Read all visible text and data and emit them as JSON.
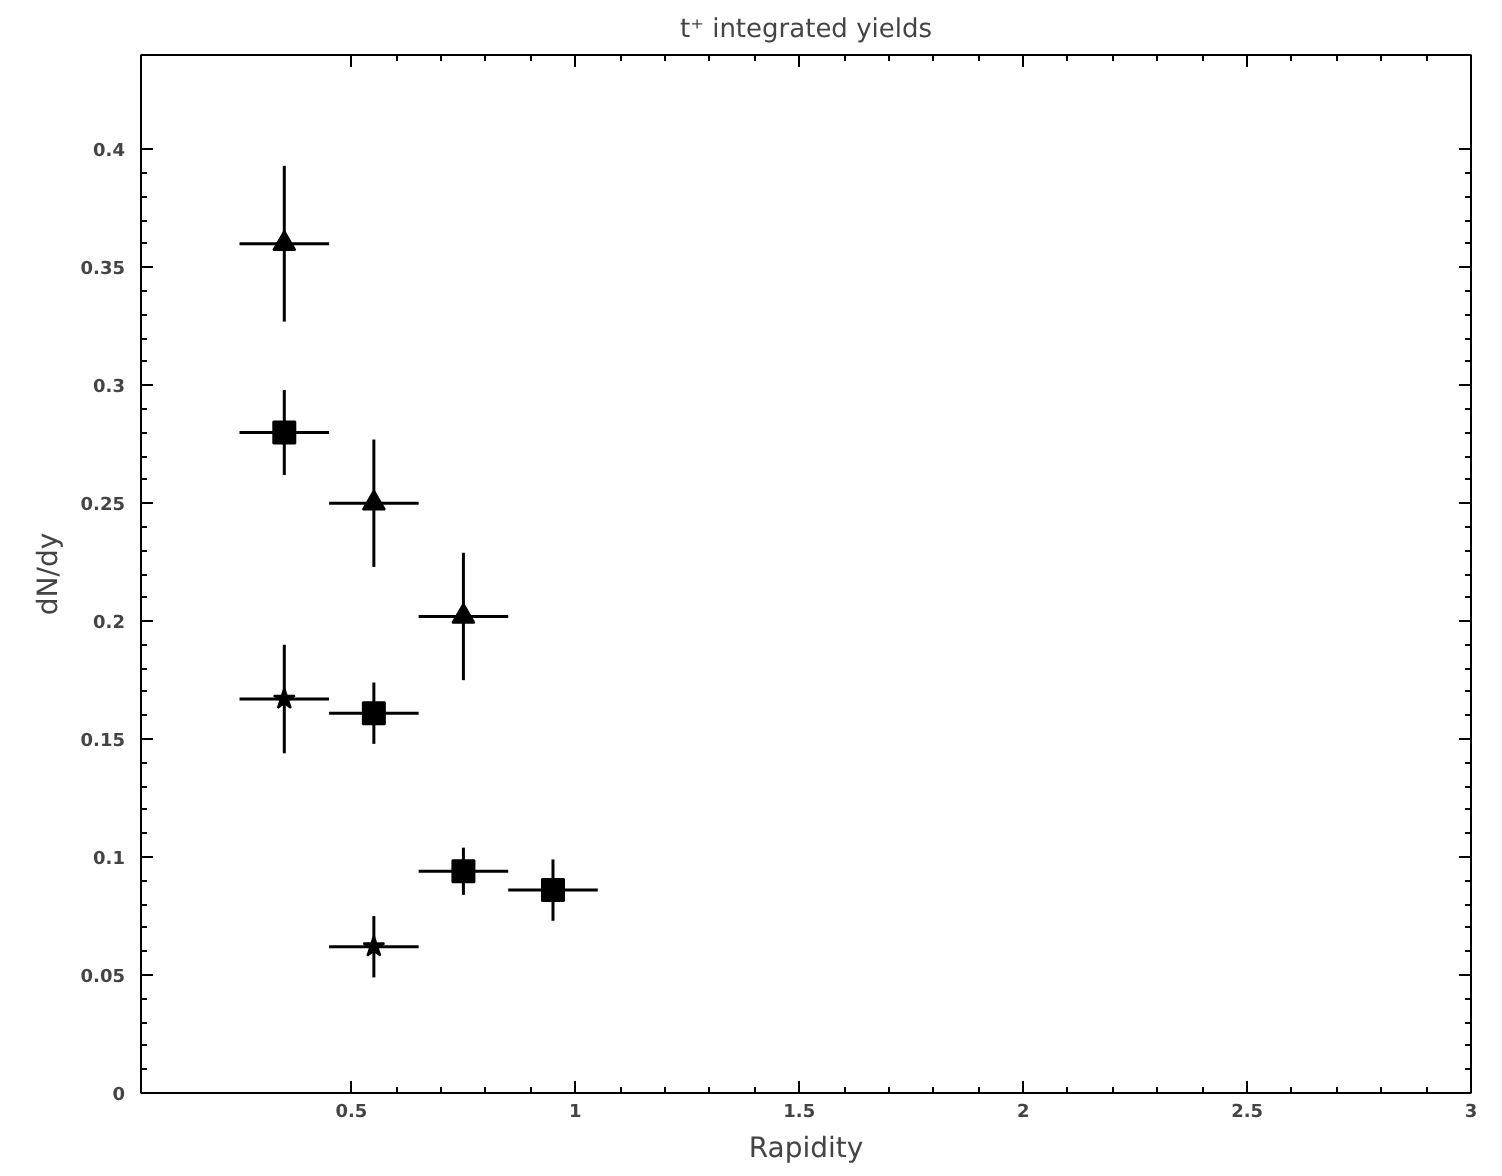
{
  "chart_data": {
    "type": "scatter",
    "title": "t⁺ integrated yields",
    "xlabel": "Rapidity",
    "ylabel": "dN/dy",
    "xlim": [
      0.03,
      3
    ],
    "ylim": [
      0,
      0.44
    ],
    "xticks": [
      0.5,
      1,
      1.5,
      2,
      2.5,
      3
    ],
    "yticks": [
      0,
      0.05,
      0.1,
      0.15,
      0.2,
      0.25,
      0.3,
      0.35,
      0.4
    ],
    "grid": false,
    "series": [
      {
        "color": "#000000",
        "marker": "triangle",
        "x": [
          0.35,
          0.55,
          0.75
        ],
        "values": [
          0.36,
          0.25,
          0.202
        ],
        "errors": [
          0.033,
          0.027,
          0.027
        ],
        "xerrors": [
          0.1,
          0.1,
          0.1
        ]
      },
      {
        "color": "#000000",
        "marker": "square",
        "x": [
          0.35,
          0.55,
          0.75,
          0.95
        ],
        "values": [
          0.28,
          0.161,
          0.094,
          0.086
        ],
        "errors": [
          0.018,
          0.013,
          0.01,
          0.013
        ],
        "xerrors": [
          0.1,
          0.1,
          0.1,
          0.1
        ]
      },
      {
        "color": "#000000",
        "marker": "star",
        "x": [
          0.35,
          0.55
        ],
        "values": [
          0.167,
          0.062
        ],
        "errors": [
          0.023,
          0.013
        ],
        "xerrors": [
          0.1,
          0.1
        ]
      }
    ]
  }
}
